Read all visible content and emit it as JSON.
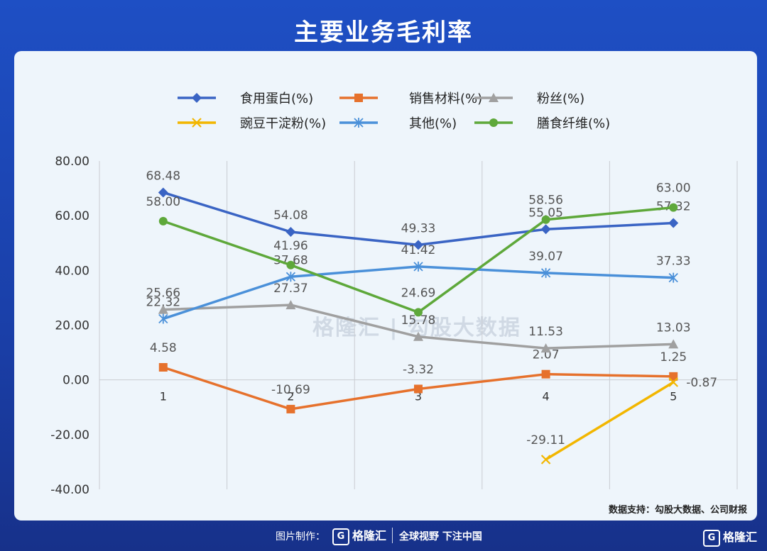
{
  "page": {
    "title": "主要业务毛利率",
    "source_label": "数据支持：勾股大数据、公司财报",
    "footer_made": "图片制作：",
    "footer_logo": "格隆汇",
    "footer_slogan": "全球视野 下注中国",
    "corner_logo": "格隆汇",
    "watermark": "格隆汇 | 勾股大数据"
  },
  "chart_data": {
    "type": "line",
    "title": "",
    "xlabel": "",
    "ylabel": "",
    "categories": [
      "1",
      "2",
      "3",
      "4",
      "5"
    ],
    "ylim": [
      -40,
      80
    ],
    "yticks": [
      "-40.00",
      "-20.00",
      "0.00",
      "20.00",
      "40.00",
      "60.00",
      "80.00"
    ],
    "ytick_values": [
      -40,
      -20,
      0,
      20,
      40,
      60,
      80
    ],
    "grid": "vertical",
    "legend_position": "top",
    "series": [
      {
        "name": "食用蛋白(%)",
        "color": "#3a64c4",
        "marker": "diamond",
        "values": [
          68.48,
          54.08,
          49.33,
          55.05,
          57.32
        ],
        "labels": [
          "68.48",
          "54.08",
          "49.33",
          "55.05",
          "57.32"
        ]
      },
      {
        "name": "销售材料(%)",
        "color": "#e6712c",
        "marker": "square",
        "values": [
          4.58,
          -10.69,
          -3.32,
          2.07,
          1.25
        ],
        "labels": [
          "4.58",
          "-10.69",
          "-3.32",
          "2.07",
          "1.25"
        ]
      },
      {
        "name": "粉丝(%)",
        "color": "#a0a0a0",
        "marker": "triangle",
        "values": [
          25.66,
          27.37,
          15.78,
          11.53,
          13.03
        ],
        "labels": [
          "25.66",
          "27.37",
          "15.78",
          "11.53",
          "13.03"
        ]
      },
      {
        "name": "豌豆干淀粉(%)",
        "color": "#f2b600",
        "marker": "x",
        "values": [
          null,
          null,
          null,
          -29.11,
          -0.87
        ],
        "labels": [
          null,
          null,
          null,
          "-29.11",
          "-0.87"
        ]
      },
      {
        "name": "其他(%)",
        "color": "#4a90d9",
        "marker": "star",
        "values": [
          22.32,
          37.68,
          41.42,
          39.07,
          37.33
        ],
        "labels": [
          "22.32",
          "37.68",
          "41.42",
          "39.07",
          "37.33"
        ]
      },
      {
        "name": "膳食纤维(%)",
        "color": "#5ea83a",
        "marker": "circle",
        "values": [
          58.0,
          41.96,
          24.69,
          58.56,
          63.0
        ],
        "labels": [
          "58.00",
          "41.96",
          "24.69",
          "58.56",
          "63.00"
        ]
      }
    ]
  }
}
